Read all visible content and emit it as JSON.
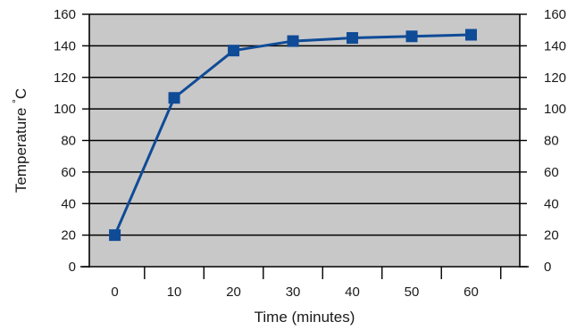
{
  "chart_data": {
    "type": "line",
    "title": "",
    "xlabel": "Time (minutes)",
    "ylabel": "Temperature °C",
    "categories": [
      "0",
      "10",
      "20",
      "30",
      "40",
      "50",
      "60"
    ],
    "x": [
      0,
      10,
      20,
      30,
      40,
      50,
      60
    ],
    "series": [
      {
        "values": [
          20,
          107,
          137,
          143,
          145,
          146,
          147
        ]
      }
    ],
    "ylim": [
      0,
      160
    ],
    "yticks": [
      0,
      20,
      40,
      60,
      80,
      100,
      120,
      140,
      160
    ],
    "right_axis_ticks": true,
    "grid": "horizontal",
    "legend": "none",
    "colors": {
      "plot_background": "#c8c8c9",
      "series": "#0f4b96",
      "grid": "#000000",
      "axis": "#000000"
    },
    "marker": "square"
  }
}
